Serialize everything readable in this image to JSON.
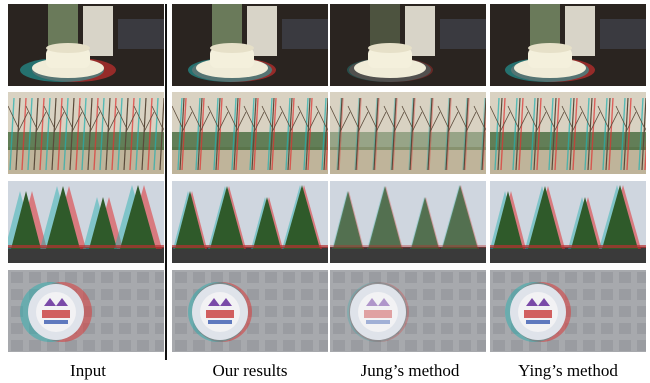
{
  "columns": [
    {
      "label": "Input"
    },
    {
      "label": "Our results"
    },
    {
      "label": "Jung’s method"
    },
    {
      "label": "Ying’s method"
    }
  ],
  "rows": [
    {
      "scene": "cup"
    },
    {
      "scene": "orchard"
    },
    {
      "scene": "pines"
    },
    {
      "scene": "badge"
    }
  ],
  "palette": {
    "anaglyph_red": "#e03030",
    "anaglyph_cyan": "#20b0b0",
    "sky": "#cfd6df",
    "foliage": "#2f5a2a"
  }
}
